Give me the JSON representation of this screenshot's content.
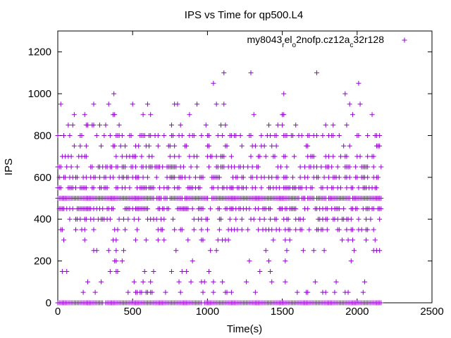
{
  "chart_data": {
    "type": "scatter",
    "title": "IPS vs Time for qp500.L4",
    "xlabel": "Time(s)",
    "ylabel": "IPS",
    "xlim": [
      0,
      2500
    ],
    "ylim": [
      0,
      1300
    ],
    "xticks": [
      "0",
      "500",
      "1000",
      "1500",
      "2000",
      "2500"
    ],
    "yticks": [
      "0",
      "200",
      "400",
      "600",
      "800",
      "1000",
      "1200"
    ],
    "legend_position": "top-right",
    "legend": {
      "base1": "my8043",
      "sub1": "r",
      "base2": "el",
      "sub2": "o",
      "base3": "2nofp.cz12a",
      "sub3": "c",
      "base4": "32r128"
    },
    "grid": false,
    "marker": "plus",
    "color": "#9400d3",
    "series": [
      {
        "x_range": [
          0,
          2160
        ],
        "x_step": 10,
        "levels": [
          0,
          50,
          100,
          150,
          200,
          250,
          300,
          350,
          400,
          450,
          500,
          550,
          600,
          650,
          700,
          750,
          800,
          850,
          900,
          950
        ],
        "level_density": [
          0.98,
          0.12,
          0.07,
          0.05,
          0.05,
          0.08,
          0.1,
          0.25,
          0.3,
          0.5,
          0.96,
          0.5,
          0.45,
          0.4,
          0.25,
          0.15,
          0.25,
          0.12,
          0.06,
          0.04
        ],
        "outliers": [
          [
            375,
            1000
          ],
          [
            1040,
            1050
          ],
          [
            1110,
            1100
          ],
          [
            1290,
            1100
          ],
          [
            1510,
            1000
          ],
          [
            1730,
            1100
          ],
          [
            1920,
            1000
          ],
          [
            2010,
            1050
          ]
        ]
      }
    ]
  }
}
